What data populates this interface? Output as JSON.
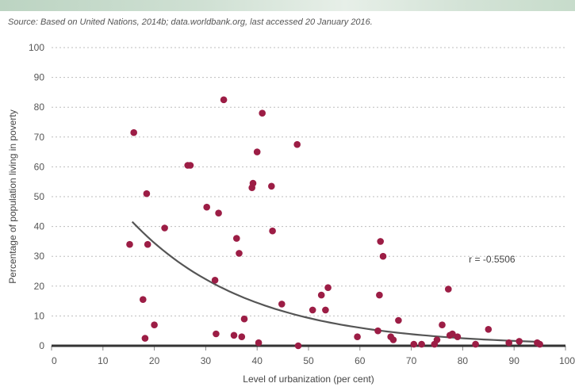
{
  "source_text": "Source: Based on United Nations, 2014b; data.worldbank.org, last accessed 20 January 2016.",
  "colors": {
    "point": "#9c1d45",
    "curve": "#555555",
    "grid": "#bdbdbd",
    "axis": "#333333"
  },
  "chart_data": {
    "type": "scatter",
    "title": "",
    "xlabel": "Level of urbanization (per cent)",
    "ylabel": "Percentage of population living in poverty",
    "xlim": [
      0,
      100
    ],
    "ylim": [
      0,
      100
    ],
    "x_ticks": [
      "0",
      "10",
      "20",
      "30",
      "40",
      "50",
      "60",
      "70",
      "80",
      "90",
      "100"
    ],
    "y_ticks": [
      "0",
      "10",
      "20",
      "30",
      "40",
      "50",
      "60",
      "70",
      "80",
      "90",
      "100"
    ],
    "grid": "horizontal dotted",
    "annotation": "r = -0.5506",
    "points": [
      [
        15.2,
        34
      ],
      [
        16.0,
        71.5
      ],
      [
        17.8,
        15.5
      ],
      [
        18.2,
        2.5
      ],
      [
        18.5,
        51
      ],
      [
        18.7,
        34
      ],
      [
        20.0,
        7
      ],
      [
        22.0,
        39.5
      ],
      [
        26.5,
        60.5
      ],
      [
        27.0,
        60.5
      ],
      [
        30.2,
        46.5
      ],
      [
        31.8,
        22
      ],
      [
        32.0,
        4
      ],
      [
        32.5,
        44.5
      ],
      [
        33.5,
        82.5
      ],
      [
        35.5,
        3.5
      ],
      [
        36.0,
        36
      ],
      [
        36.5,
        31
      ],
      [
        37.0,
        3
      ],
      [
        37.5,
        9
      ],
      [
        39.0,
        53
      ],
      [
        39.2,
        54.5
      ],
      [
        40.0,
        65
      ],
      [
        40.3,
        1
      ],
      [
        41.0,
        78
      ],
      [
        42.8,
        53.5
      ],
      [
        43.0,
        38.5
      ],
      [
        44.8,
        14
      ],
      [
        47.8,
        67.5
      ],
      [
        48.0,
        0
      ],
      [
        50.8,
        12
      ],
      [
        52.5,
        17
      ],
      [
        53.3,
        12
      ],
      [
        53.8,
        19.5
      ],
      [
        59.5,
        3
      ],
      [
        63.5,
        5
      ],
      [
        63.8,
        17
      ],
      [
        64.0,
        35
      ],
      [
        64.5,
        30
      ],
      [
        66.0,
        3
      ],
      [
        66.5,
        2
      ],
      [
        67.5,
        8.5
      ],
      [
        70.5,
        0.5
      ],
      [
        72.0,
        0.5
      ],
      [
        74.5,
        0.5
      ],
      [
        75.0,
        2
      ],
      [
        76.0,
        7
      ],
      [
        77.2,
        19
      ],
      [
        77.5,
        3.5
      ],
      [
        78.0,
        4
      ],
      [
        79.0,
        3
      ],
      [
        82.5,
        0.5
      ],
      [
        85.0,
        5.5
      ],
      [
        89.0,
        1
      ],
      [
        91.0,
        1.5
      ],
      [
        94.5,
        1
      ],
      [
        95.0,
        0.5
      ]
    ],
    "trend": {
      "type": "exponential",
      "x_range": [
        15.7,
        95
      ],
      "fit": "y = 41.6 * exp(-0.0436 * (x - 15.7))"
    }
  }
}
